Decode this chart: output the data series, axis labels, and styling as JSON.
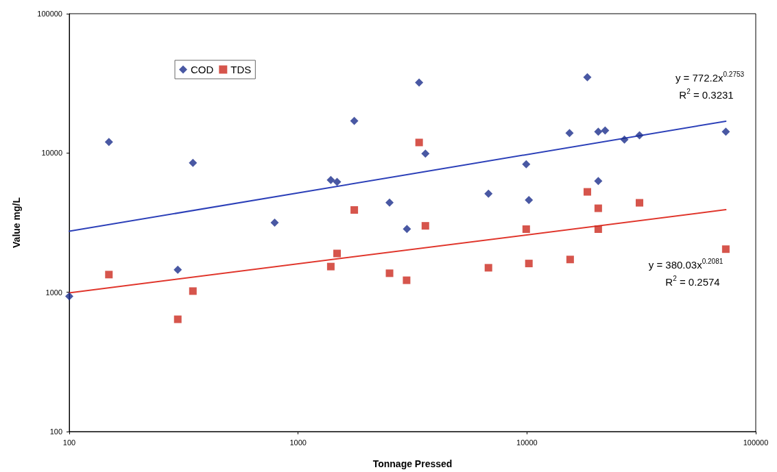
{
  "chart_data": {
    "type": "scatter",
    "xlabel": "Tonnage Pressed",
    "ylabel": "Value mg/L",
    "log": "xy",
    "xlim": [
      100,
      100000
    ],
    "xticks": [
      100,
      1000,
      10000,
      100000
    ],
    "ylim": [
      100,
      100000
    ],
    "yticks": [
      100,
      1000,
      10000,
      100000
    ],
    "grid": false,
    "legend": "top left",
    "series": [
      {
        "name": "COD",
        "marker": "diamond",
        "color": "#1c2e8c",
        "x": [
          100,
          149,
          298,
          347,
          790,
          1390,
          1480,
          1760,
          2510,
          2990,
          3380,
          3600,
          6790,
          9930,
          10200,
          15350,
          18370,
          20500,
          20500,
          21970,
          26670,
          31050,
          74000
        ],
        "values": [
          935,
          12000,
          1450,
          8500,
          3160,
          6400,
          6200,
          17000,
          4400,
          2850,
          32000,
          9900,
          5100,
          8300,
          4600,
          13900,
          35000,
          14200,
          6300,
          14500,
          12500,
          13400,
          14200
        ]
      },
      {
        "name": "TDS",
        "marker": "square",
        "color": "#cc2a1f",
        "x": [
          149,
          298,
          347,
          1390,
          1480,
          1760,
          2510,
          2980,
          3380,
          3600,
          6790,
          9930,
          10200,
          15450,
          18370,
          20500,
          20500,
          31050,
          74000
        ],
        "values": [
          1340,
          640,
          1020,
          1530,
          1900,
          3900,
          1370,
          1220,
          11900,
          3000,
          1500,
          2840,
          1610,
          1720,
          5260,
          4010,
          2840,
          4390,
          2040
        ]
      },
      {
        "type": "line",
        "marker": "none",
        "color": "#2b3fb8",
        "x": [
          100,
          74000
        ],
        "values": [
          2744,
          16900
        ]
      },
      {
        "type": "line",
        "marker": "none",
        "color": "#e0352b",
        "x": [
          100,
          74000
        ],
        "values": [
          991,
          3918
        ]
      }
    ],
    "annotations": [
      "y = 772.2x$^{0.2753}$",
      "R$^{2}$ = 0.3231",
      "y = 380.03x$^{0.2081}$",
      "R$^{2}$ = 0.2574"
    ]
  }
}
